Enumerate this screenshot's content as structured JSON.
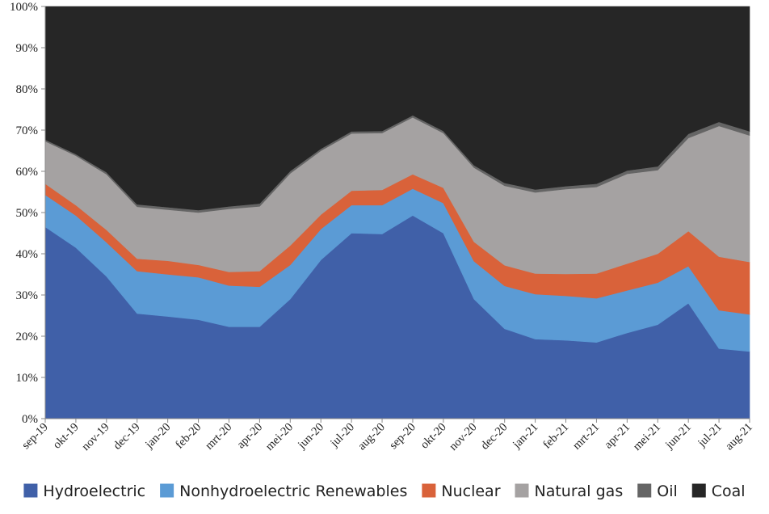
{
  "chart_data": {
    "type": "area",
    "stacked": true,
    "percent": true,
    "categories": [
      "sep-19",
      "okt-19",
      "nov-19",
      "dec-19",
      "jan-20",
      "feb-20",
      "mrt-20",
      "apr-20",
      "mei-20",
      "jun-20",
      "jul-20",
      "aug-20",
      "sep-20",
      "okt-20",
      "nov-20",
      "dec-20",
      "jan-21",
      "feb-21",
      "mrt-21",
      "apr-21",
      "mei-21",
      "jun-21",
      "jul-21",
      "aug-21"
    ],
    "ylim": [
      0,
      100
    ],
    "yticks": [
      "0%",
      "10%",
      "20%",
      "30%",
      "40%",
      "50%",
      "60%",
      "70%",
      "80%",
      "90%",
      "100%"
    ],
    "legend_position": "bottom",
    "series": [
      {
        "name": "Hydroelectric",
        "color": "#4060a8",
        "values": [
          46.5,
          41.5,
          34.5,
          25.5,
          24.8,
          24.0,
          22.3,
          22.3,
          29.0,
          38.5,
          45.0,
          44.8,
          49.3,
          45.0,
          29.0,
          21.8,
          19.3,
          19.0,
          18.5,
          20.8,
          22.8,
          28.0,
          17.0,
          16.3
        ]
      },
      {
        "name": "Nonhydroelectric Renewables",
        "color": "#5b9bd5",
        "values": [
          7.8,
          7.8,
          8.3,
          10.3,
          10.2,
          10.3,
          10.0,
          9.7,
          8.3,
          7.5,
          6.8,
          7.0,
          6.5,
          7.3,
          9.2,
          10.4,
          10.9,
          10.8,
          10.7,
          10.3,
          10.2,
          9.0,
          9.3,
          9.0
        ]
      },
      {
        "name": "Nuclear",
        "color": "#d9623a",
        "values": [
          2.7,
          2.5,
          3.0,
          3.0,
          3.3,
          3.0,
          3.3,
          3.8,
          4.7,
          3.5,
          3.5,
          3.7,
          3.5,
          3.7,
          4.7,
          5.0,
          5.0,
          5.3,
          6.0,
          6.5,
          7.0,
          8.5,
          13.0,
          12.7
        ]
      },
      {
        "name": "Natural gas",
        "color": "#a5a2a2",
        "values": [
          10.3,
          12.0,
          13.5,
          12.6,
          12.4,
          12.7,
          15.3,
          15.7,
          17.5,
          15.5,
          13.9,
          13.8,
          13.8,
          13.3,
          18.0,
          19.3,
          19.7,
          20.6,
          21.0,
          21.8,
          20.3,
          22.6,
          31.7,
          30.7
        ]
      },
      {
        "name": "Oil",
        "color": "#656565",
        "values": [
          0.4,
          0.4,
          0.5,
          0.6,
          0.6,
          0.6,
          0.6,
          0.7,
          0.6,
          0.5,
          0.5,
          0.5,
          0.5,
          0.5,
          0.6,
          0.7,
          0.7,
          0.7,
          0.8,
          0.8,
          0.9,
          1.0,
          1.0,
          1.0
        ]
      },
      {
        "name": "Coal",
        "color": "#262626",
        "values": [
          32.3,
          35.8,
          40.2,
          48.0,
          48.7,
          49.4,
          48.5,
          47.8,
          39.9,
          34.5,
          30.3,
          30.2,
          26.4,
          30.2,
          38.5,
          42.8,
          44.4,
          43.6,
          43.0,
          39.8,
          38.8,
          30.9,
          28.0,
          30.3
        ]
      }
    ]
  }
}
